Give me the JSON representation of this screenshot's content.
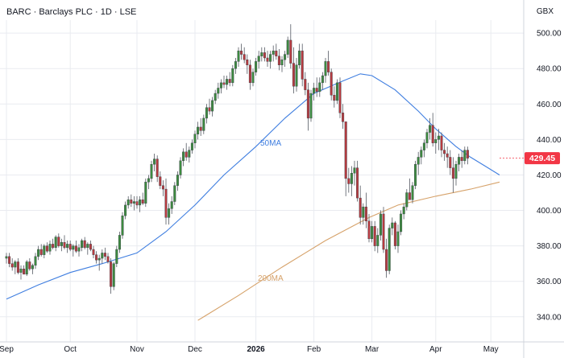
{
  "header": {
    "title": "BARC · Barclays PLC · 1D · LSE",
    "currency": "GBX"
  },
  "last_price": {
    "value": "429.45",
    "color": "#f23645"
  },
  "colors": {
    "up": "#3c8a3f",
    "down": "#b73a3f",
    "ma50": "#3f7ee0",
    "ma200": "#d6a26a",
    "grid": "#e9ebf0",
    "axis": "#d1d4dc"
  },
  "chart_data": {
    "type": "candlestick",
    "symbol": "BARC",
    "timeframe": "1D",
    "exchange": "LSE",
    "currency": "GBX",
    "ylim": [
      330,
      510
    ],
    "yticks": [
      340,
      360,
      380,
      400,
      420,
      440,
      460,
      480,
      500
    ],
    "xticks": [
      {
        "label": "Sep",
        "bar": 0
      },
      {
        "label": "Oct",
        "bar": 22
      },
      {
        "label": "Nov",
        "bar": 45
      },
      {
        "label": "Dec",
        "bar": 65
      },
      {
        "label": "2026",
        "bar": 86
      },
      {
        "label": "Feb",
        "bar": 106
      },
      {
        "label": "Mar",
        "bar": 126
      },
      {
        "label": "Apr",
        "bar": 148
      },
      {
        "label": "May",
        "bar": 167
      }
    ],
    "bars": [
      [
        373,
        376,
        370,
        374
      ],
      [
        374,
        376,
        368,
        370
      ],
      [
        370,
        373,
        366,
        368
      ],
      [
        368,
        372,
        364,
        371
      ],
      [
        371,
        373,
        364,
        365
      ],
      [
        365,
        369,
        361,
        367
      ],
      [
        367,
        369,
        364,
        364
      ],
      [
        364,
        372,
        363,
        371
      ],
      [
        371,
        373,
        366,
        367
      ],
      [
        367,
        370,
        364,
        369
      ],
      [
        369,
        376,
        367,
        374
      ],
      [
        374,
        380,
        372,
        378
      ],
      [
        378,
        381,
        374,
        375
      ],
      [
        375,
        381,
        373,
        380
      ],
      [
        380,
        382,
        376,
        377
      ],
      [
        377,
        383,
        375,
        381
      ],
      [
        381,
        384,
        378,
        379
      ],
      [
        379,
        386,
        377,
        385
      ],
      [
        385,
        387,
        379,
        380
      ],
      [
        380,
        384,
        377,
        382
      ],
      [
        382,
        386,
        378,
        379
      ],
      [
        379,
        383,
        376,
        381
      ],
      [
        381,
        383,
        377,
        378
      ],
      [
        378,
        381,
        374,
        380
      ],
      [
        380,
        383,
        376,
        377
      ],
      [
        377,
        381,
        374,
        379
      ],
      [
        379,
        384,
        377,
        383
      ],
      [
        383,
        385,
        378,
        379
      ],
      [
        379,
        382,
        375,
        381
      ],
      [
        381,
        383,
        377,
        378
      ],
      [
        378,
        380,
        373,
        375
      ],
      [
        375,
        377,
        370,
        372
      ],
      [
        372,
        375,
        366,
        373
      ],
      [
        373,
        378,
        370,
        376
      ],
      [
        376,
        379,
        372,
        374
      ],
      [
        374,
        376,
        370,
        371
      ],
      [
        371,
        373,
        353,
        357
      ],
      [
        357,
        371,
        355,
        370
      ],
      [
        370,
        380,
        368,
        378
      ],
      [
        378,
        388,
        376,
        386
      ],
      [
        386,
        399,
        384,
        397
      ],
      [
        397,
        405,
        395,
        403
      ],
      [
        403,
        408,
        401,
        406
      ],
      [
        406,
        409,
        402,
        404
      ],
      [
        404,
        408,
        400,
        405
      ],
      [
        405,
        408,
        401,
        403
      ],
      [
        403,
        408,
        399,
        406
      ],
      [
        406,
        410,
        403,
        404
      ],
      [
        404,
        418,
        402,
        416
      ],
      [
        416,
        420,
        412,
        418
      ],
      [
        418,
        428,
        416,
        426
      ],
      [
        426,
        432,
        422,
        429
      ],
      [
        429,
        431,
        416,
        419
      ],
      [
        419,
        422,
        412,
        414
      ],
      [
        414,
        417,
        408,
        412
      ],
      [
        412,
        418,
        392,
        396
      ],
      [
        396,
        404,
        392,
        401
      ],
      [
        401,
        408,
        398,
        405
      ],
      [
        405,
        416,
        403,
        414
      ],
      [
        414,
        422,
        411,
        420
      ],
      [
        420,
        430,
        418,
        428
      ],
      [
        428,
        435,
        425,
        433
      ],
      [
        433,
        438,
        428,
        430
      ],
      [
        430,
        436,
        427,
        434
      ],
      [
        434,
        440,
        432,
        438
      ],
      [
        438,
        445,
        435,
        443
      ],
      [
        443,
        450,
        440,
        447
      ],
      [
        447,
        452,
        442,
        445
      ],
      [
        445,
        454,
        443,
        452
      ],
      [
        452,
        460,
        449,
        458
      ],
      [
        458,
        463,
        454,
        456
      ],
      [
        456,
        464,
        453,
        462
      ],
      [
        462,
        468,
        460,
        466
      ],
      [
        466,
        472,
        463,
        469
      ],
      [
        469,
        474,
        466,
        472
      ],
      [
        472,
        476,
        469,
        471
      ],
      [
        471,
        476,
        468,
        474
      ],
      [
        474,
        478,
        470,
        472
      ],
      [
        472,
        482,
        470,
        480
      ],
      [
        480,
        486,
        477,
        484
      ],
      [
        484,
        492,
        481,
        490
      ],
      [
        490,
        494,
        485,
        488
      ],
      [
        488,
        492,
        483,
        485
      ],
      [
        485,
        488,
        477,
        482
      ],
      [
        482,
        485,
        468,
        472
      ],
      [
        472,
        480,
        470,
        478
      ],
      [
        478,
        486,
        476,
        484
      ],
      [
        484,
        490,
        480,
        487
      ],
      [
        487,
        492,
        484,
        489
      ],
      [
        489,
        492,
        484,
        486
      ],
      [
        486,
        490,
        481,
        484
      ],
      [
        484,
        490,
        480,
        488
      ],
      [
        488,
        493,
        484,
        490
      ],
      [
        490,
        494,
        485,
        487
      ],
      [
        487,
        491,
        479,
        482
      ],
      [
        482,
        487,
        478,
        485
      ],
      [
        485,
        490,
        481,
        488
      ],
      [
        488,
        498,
        486,
        496
      ],
      [
        496,
        505,
        480,
        483
      ],
      [
        483,
        492,
        466,
        470
      ],
      [
        470,
        486,
        467,
        482
      ],
      [
        482,
        494,
        480,
        490
      ],
      [
        490,
        494,
        470,
        474
      ],
      [
        474,
        478,
        465,
        468
      ],
      [
        468,
        472,
        445,
        452
      ],
      [
        452,
        468,
        450,
        466
      ],
      [
        466,
        472,
        462,
        469
      ],
      [
        469,
        475,
        464,
        467
      ],
      [
        467,
        475,
        464,
        472
      ],
      [
        472,
        478,
        468,
        476
      ],
      [
        476,
        486,
        472,
        484
      ],
      [
        484,
        490,
        476,
        478
      ],
      [
        478,
        480,
        462,
        465
      ],
      [
        465,
        470,
        458,
        462
      ],
      [
        462,
        474,
        460,
        472
      ],
      [
        472,
        475,
        452,
        455
      ],
      [
        455,
        460,
        446,
        450
      ],
      [
        450,
        438,
        408,
        418
      ],
      [
        418,
        424,
        410,
        415
      ],
      [
        415,
        425,
        408,
        421
      ],
      [
        421,
        428,
        414,
        424
      ],
      [
        424,
        428,
        405,
        407
      ],
      [
        407,
        414,
        392,
        396
      ],
      [
        396,
        404,
        392,
        402
      ],
      [
        402,
        410,
        390,
        394
      ],
      [
        394,
        398,
        382,
        384
      ],
      [
        384,
        394,
        382,
        391
      ],
      [
        391,
        394,
        377,
        380
      ],
      [
        380,
        390,
        376,
        386
      ],
      [
        386,
        400,
        383,
        398
      ],
      [
        398,
        402,
        376,
        378
      ],
      [
        378,
        384,
        362,
        366
      ],
      [
        366,
        392,
        364,
        390
      ],
      [
        390,
        396,
        386,
        393
      ],
      [
        393,
        394,
        378,
        380
      ],
      [
        380,
        392,
        376,
        388
      ],
      [
        388,
        400,
        386,
        398
      ],
      [
        398,
        404,
        395,
        402
      ],
      [
        402,
        412,
        400,
        410
      ],
      [
        410,
        418,
        407,
        406
      ],
      [
        406,
        416,
        404,
        414
      ],
      [
        414,
        428,
        412,
        426
      ],
      [
        426,
        433,
        420,
        430
      ],
      [
        430,
        436,
        426,
        434
      ],
      [
        434,
        440,
        430,
        438
      ],
      [
        438,
        446,
        435,
        444
      ],
      [
        444,
        452,
        440,
        448
      ],
      [
        448,
        455,
        436,
        438
      ],
      [
        438,
        444,
        432,
        440
      ],
      [
        440,
        446,
        434,
        442
      ],
      [
        442,
        444,
        430,
        434
      ],
      [
        434,
        438,
        428,
        432
      ],
      [
        432,
        436,
        424,
        430
      ],
      [
        430,
        434,
        420,
        424
      ],
      [
        424,
        430,
        410,
        418
      ],
      [
        418,
        428,
        414,
        426
      ],
      [
        426,
        432,
        422,
        430
      ],
      [
        430,
        434,
        424,
        428
      ],
      [
        428,
        436,
        426,
        434
      ],
      [
        434,
        436,
        426,
        429.45
      ]
    ],
    "ma50": {
      "label": "50MA",
      "points": [
        [
          0,
          350
        ],
        [
          11,
          358
        ],
        [
          22,
          365
        ],
        [
          33,
          370
        ],
        [
          45,
          376
        ],
        [
          55,
          388
        ],
        [
          65,
          403
        ],
        [
          75,
          420
        ],
        [
          86,
          436
        ],
        [
          96,
          452
        ],
        [
          106,
          466
        ],
        [
          116,
          473
        ],
        [
          122,
          477
        ],
        [
          126,
          476
        ],
        [
          134,
          468
        ],
        [
          142,
          456
        ],
        [
          148,
          446
        ],
        [
          155,
          436
        ],
        [
          160,
          430
        ],
        [
          165,
          425
        ],
        [
          170,
          420
        ]
      ]
    },
    "ma200": {
      "label": "200MA",
      "points": [
        [
          66,
          338
        ],
        [
          80,
          352
        ],
        [
          95,
          368
        ],
        [
          110,
          383
        ],
        [
          125,
          396
        ],
        [
          135,
          403
        ],
        [
          148,
          408
        ],
        [
          160,
          412
        ],
        [
          170,
          416
        ]
      ]
    }
  }
}
